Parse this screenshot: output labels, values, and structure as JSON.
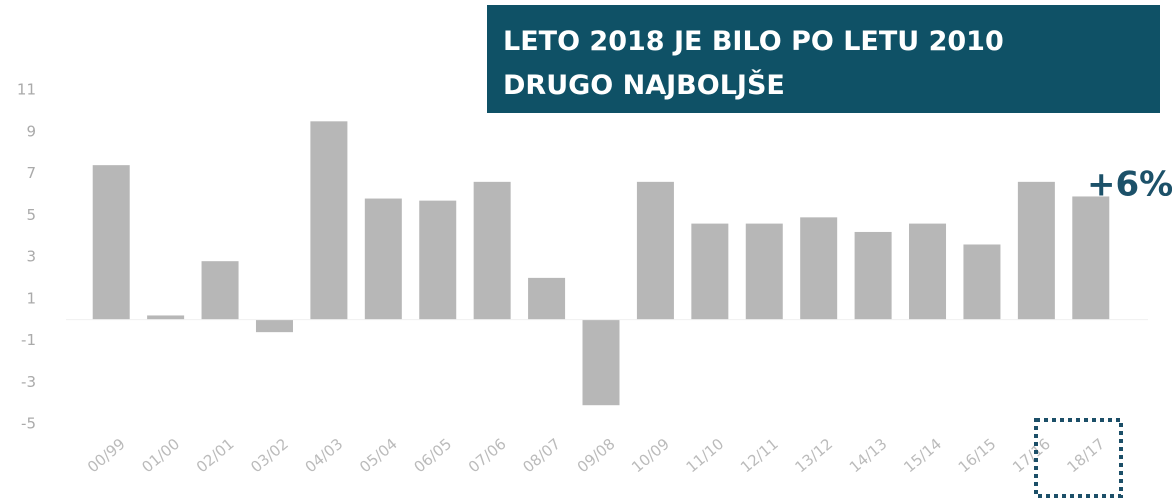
{
  "chart_data": {
    "type": "bar",
    "title_lines": [
      "LETO 2018 JE BILO PO LETU 2010",
      "DRUGO NAJBOLJŠE"
    ],
    "annotation": "+6%",
    "categories": [
      "00/99",
      "01/00",
      "02/01",
      "03/02",
      "04/03",
      "05/04",
      "06/05",
      "07/06",
      "08/07",
      "09/08",
      "10/09",
      "11/10",
      "12/11",
      "13/12",
      "14/13",
      "15/14",
      "16/15",
      "17/16",
      "18/17"
    ],
    "values": [
      7.4,
      0.2,
      2.8,
      -0.6,
      9.5,
      5.8,
      5.7,
      6.6,
      2.0,
      -4.1,
      6.6,
      4.6,
      4.6,
      4.9,
      4.2,
      4.6,
      3.6,
      6.6,
      5.9
    ],
    "color": "#b7b7b7",
    "ylim": [
      -5,
      11
    ],
    "yticks": [
      -5,
      -3,
      -1,
      1,
      3,
      5,
      7,
      9,
      11
    ],
    "grid": false
  }
}
